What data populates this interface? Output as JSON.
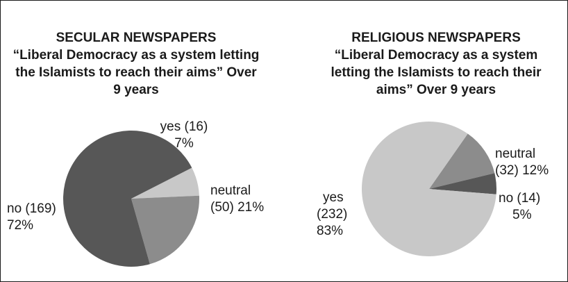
{
  "chart_data": [
    {
      "type": "pie",
      "title_lines": [
        "SECULAR NEWSPAPERS",
        "“Liberal Democracy as a system letting",
        "the Islamists to reach their aims” Over",
        "9 years"
      ],
      "slices": [
        {
          "category": "yes",
          "count": 16,
          "percent": 7,
          "color": "#c8c8c8",
          "label_lines": [
            "yes (16)",
            "7%"
          ]
        },
        {
          "category": "neutral",
          "count": 50,
          "percent": 21,
          "color": "#8c8c8c",
          "label_lines": [
            "neutral",
            "(50) 21%"
          ]
        },
        {
          "category": "no",
          "count": 169,
          "percent": 72,
          "color": "#575757",
          "label_lines": [
            "no (169)",
            "72%"
          ]
        }
      ]
    },
    {
      "type": "pie",
      "title_lines": [
        "RELIGIOUS NEWSPAPERS",
        "“Liberal Democracy as a system",
        "letting the Islamists to reach their",
        "aims” Over 9 years"
      ],
      "slices": [
        {
          "category": "neutral",
          "count": 32,
          "percent": 12,
          "color": "#8c8c8c",
          "label_lines": [
            "neutral",
            "(32) 12%"
          ]
        },
        {
          "category": "no",
          "count": 14,
          "percent": 5,
          "color": "#575757",
          "label_lines": [
            "no (14)",
            "5%"
          ]
        },
        {
          "category": "yes",
          "count": 232,
          "percent": 83,
          "color": "#c8c8c8",
          "label_lines": [
            "yes",
            "(232)",
            "83%"
          ]
        }
      ]
    }
  ]
}
